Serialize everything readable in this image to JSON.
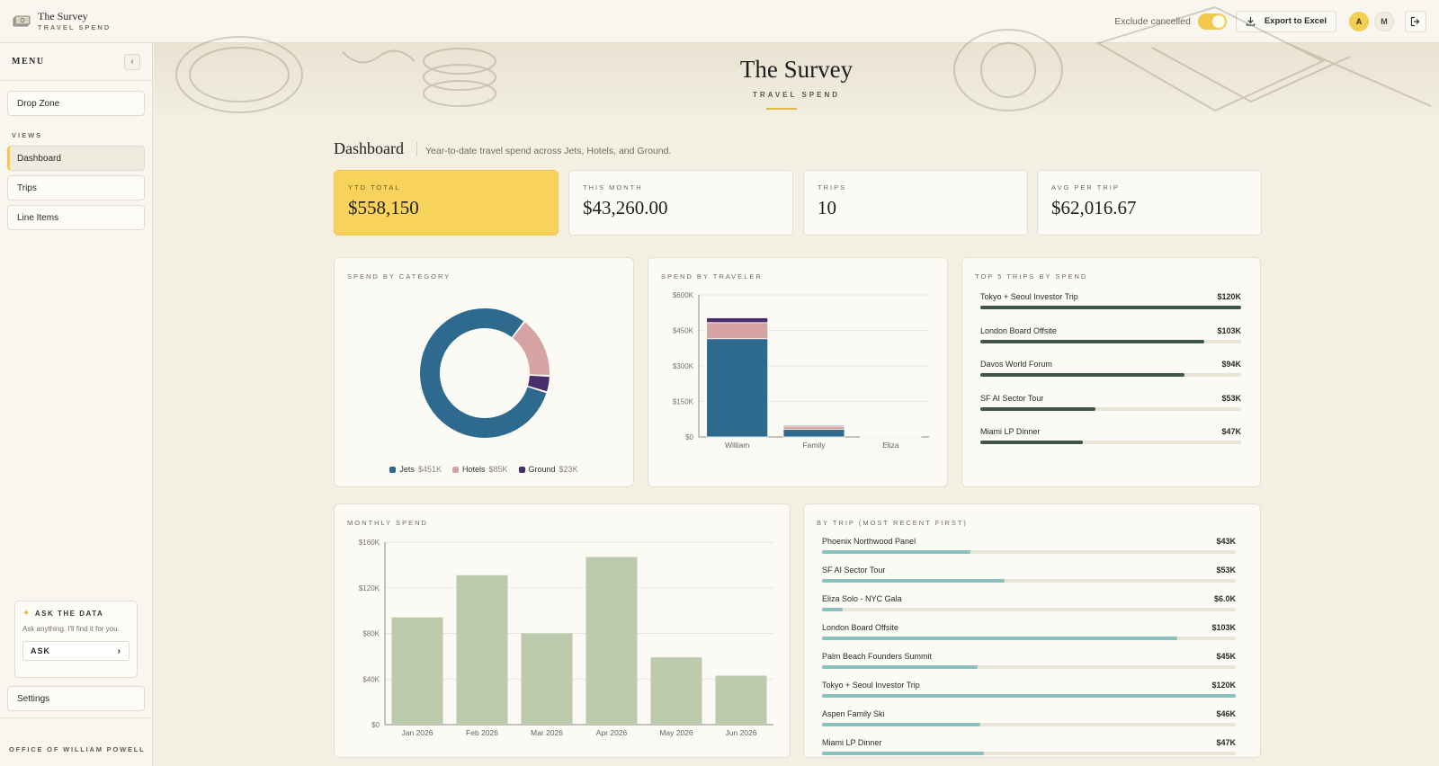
{
  "app": {
    "title": "The Survey",
    "subtitle": "TRAVEL SPEND",
    "office": "OFFICE OF WILLIAM POWELL"
  },
  "topbar": {
    "toggle_label": "Exclude cancelled",
    "toggle_on": true,
    "export_label": "Export to Excel",
    "avatars": [
      "A",
      "M"
    ]
  },
  "sidebar": {
    "menu_title": "MENU",
    "drop_zone": "Drop Zone",
    "views_label": "VIEWS",
    "items": [
      {
        "label": "Dashboard",
        "active": true
      },
      {
        "label": "Trips",
        "active": false
      },
      {
        "label": "Line Items",
        "active": false
      }
    ],
    "ask": {
      "title": "ASK THE DATA",
      "description": "Ask anything. I'll find it for you.",
      "button": "ASK"
    },
    "settings": "Settings"
  },
  "hero": {
    "title": "The Survey",
    "subtitle": "TRAVEL SPEND"
  },
  "dashboard": {
    "title": "Dashboard",
    "subtitle": "Year-to-date travel spend across Jets, Hotels, and Ground."
  },
  "kpis": [
    {
      "label": "YTD TOTAL",
      "value": "$558,150",
      "highlight": true
    },
    {
      "label": "THIS MONTH",
      "value": "$43,260.00",
      "highlight": false
    },
    {
      "label": "TRIPS",
      "value": "10",
      "highlight": false
    },
    {
      "label": "AVG PER TRIP",
      "value": "$62,016.67",
      "highlight": false
    }
  ],
  "colors": {
    "jets": "#2e6a8e",
    "hotels": "#d4a3a2",
    "ground": "#4a2d6b",
    "rank_bar": "#3d5446",
    "monthly_bar": "#bccbad",
    "trip_bar": "#8bc0bf",
    "accent": "#f8d35c"
  },
  "cards": {
    "category": "SPEND BY CATEGORY",
    "traveler": "SPEND BY TRAVELER",
    "top5": "TOP 5 TRIPS BY SPEND",
    "monthly": "MONTHLY SPEND",
    "by_trip": "BY TRIP (MOST RECENT FIRST)"
  },
  "chart_data": [
    {
      "type": "pie",
      "title": "SPEND BY CATEGORY",
      "labels": [
        "Jets",
        "Hotels",
        "Ground"
      ],
      "values": [
        451,
        85,
        23
      ],
      "value_labels": [
        "$451K",
        "$85K",
        "$23K"
      ],
      "legend": "bottom"
    },
    {
      "type": "bar",
      "stacked": true,
      "title": "SPEND BY TRAVELER",
      "categories": [
        "William",
        "Family",
        "Eliza"
      ],
      "series": [
        {
          "name": "Jets",
          "values": [
            415000,
            32000,
            0
          ]
        },
        {
          "name": "Hotels",
          "values": [
            68000,
            13000,
            3000
          ]
        },
        {
          "name": "Ground",
          "values": [
            20000,
            4000,
            3000
          ]
        }
      ],
      "ylim": [
        0,
        600000
      ],
      "yticks": [
        "$0",
        "$150K",
        "$300K",
        "$450K",
        "$600K"
      ],
      "grid": true
    },
    {
      "type": "bar",
      "title": "TOP 5 TRIPS BY SPEND",
      "orientation": "horizontal",
      "categories": [
        "Tokyo + Seoul Investor Trip",
        "London Board Offsite",
        "Davos World Forum",
        "SF AI Sector Tour",
        "Miami LP Dinner"
      ],
      "values": [
        120,
        103,
        94,
        53,
        47
      ],
      "value_labels": [
        "$120K",
        "$103K",
        "$94K",
        "$53K",
        "$47K"
      ],
      "xlim": [
        0,
        120
      ]
    },
    {
      "type": "bar",
      "title": "MONTHLY SPEND",
      "categories": [
        "Jan 2026",
        "Feb 2026",
        "Mar 2026",
        "Apr 2026",
        "May 2026",
        "Jun 2026"
      ],
      "values": [
        94000,
        131000,
        80000,
        147000,
        59000,
        43000
      ],
      "ylim": [
        0,
        160000
      ],
      "yticks": [
        "$0",
        "$40K",
        "$80K",
        "$120K",
        "$160K"
      ],
      "grid": true
    },
    {
      "type": "bar",
      "title": "BY TRIP (MOST RECENT FIRST)",
      "orientation": "horizontal",
      "categories": [
        "Phoenix Northwood Panel",
        "SF AI Sector Tour",
        "Eliza Solo - NYC Gala",
        "London Board Offsite",
        "Palm Beach Founders Summit",
        "Tokyo + Seoul Investor Trip",
        "Aspen Family Ski",
        "Miami LP Dinner"
      ],
      "values": [
        43,
        53,
        6,
        103,
        45,
        120,
        46,
        47
      ],
      "value_labels": [
        "$43K",
        "$53K",
        "$6.0K",
        "$103K",
        "$45K",
        "$120K",
        "$46K",
        "$47K"
      ],
      "xlim": [
        0,
        120
      ]
    }
  ]
}
